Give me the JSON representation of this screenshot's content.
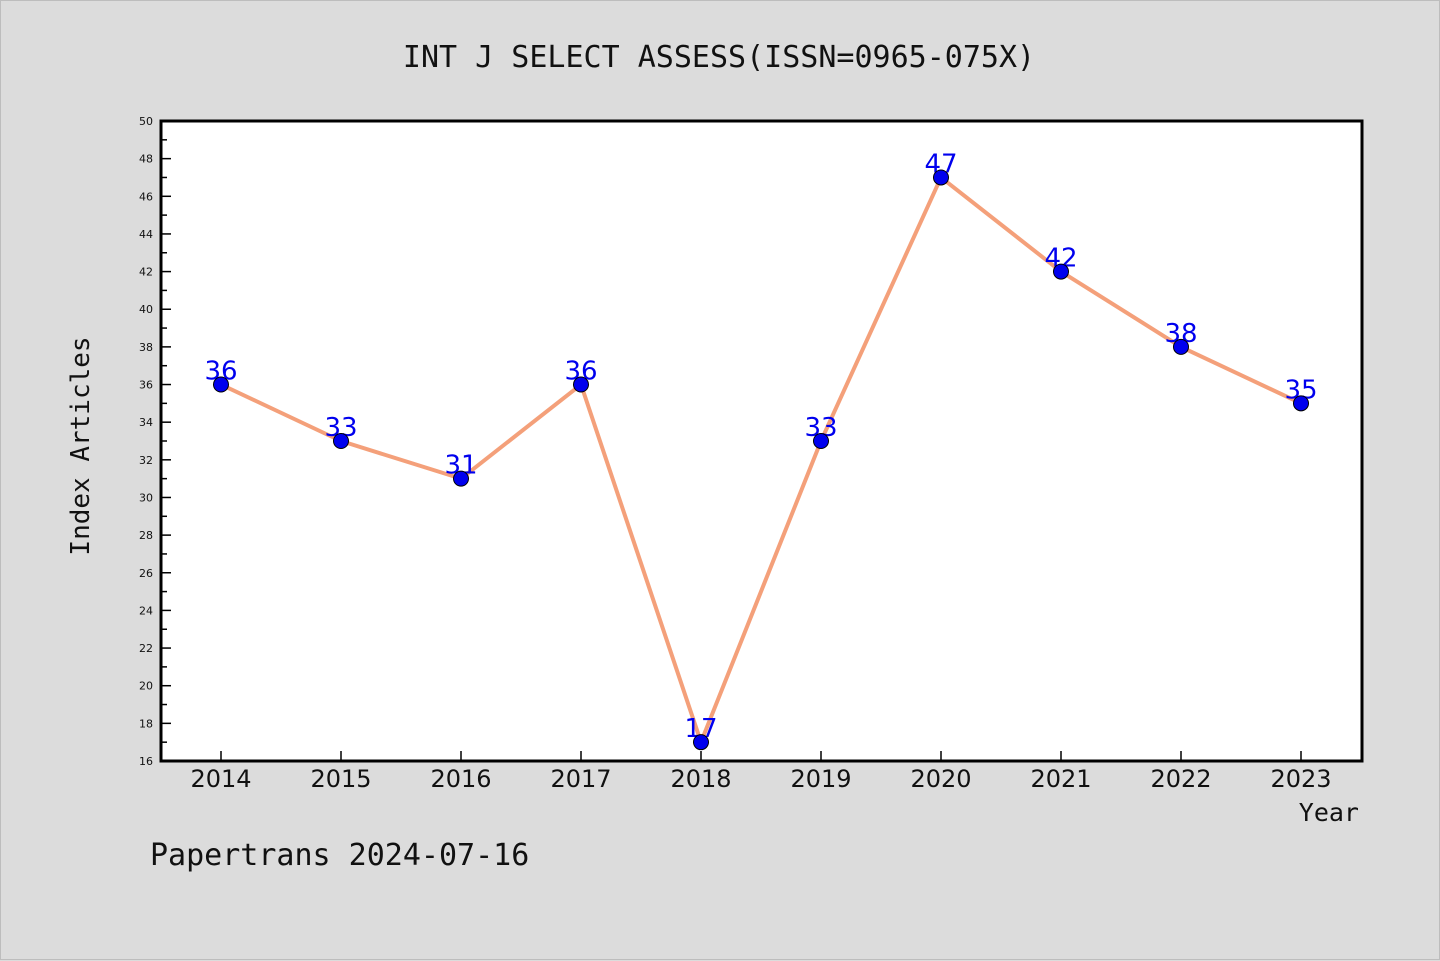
{
  "chart_data": {
    "type": "line",
    "title": "INT J SELECT ASSESS(ISSN=0965-075X)",
    "xlabel": "Year",
    "ylabel": "Index Articles",
    "x": [
      "2014",
      "2015",
      "2016",
      "2017",
      "2018",
      "2019",
      "2020",
      "2021",
      "2022",
      "2023"
    ],
    "values": [
      36,
      33,
      31,
      36,
      17,
      33,
      47,
      42,
      38,
      35
    ],
    "ylim": [
      16,
      50
    ],
    "yticks": [
      "16",
      "18",
      "20",
      "22",
      "24",
      "26",
      "28",
      "30",
      "32",
      "34",
      "36",
      "38",
      "40",
      "42",
      "44",
      "46",
      "48",
      "50"
    ],
    "grid": false,
    "legend": "none",
    "line_color": "#f4a07a",
    "marker_color": "#0000ee",
    "label_color": "#0000ee"
  },
  "footer": {
    "text": "Papertrans 2024-07-16"
  }
}
